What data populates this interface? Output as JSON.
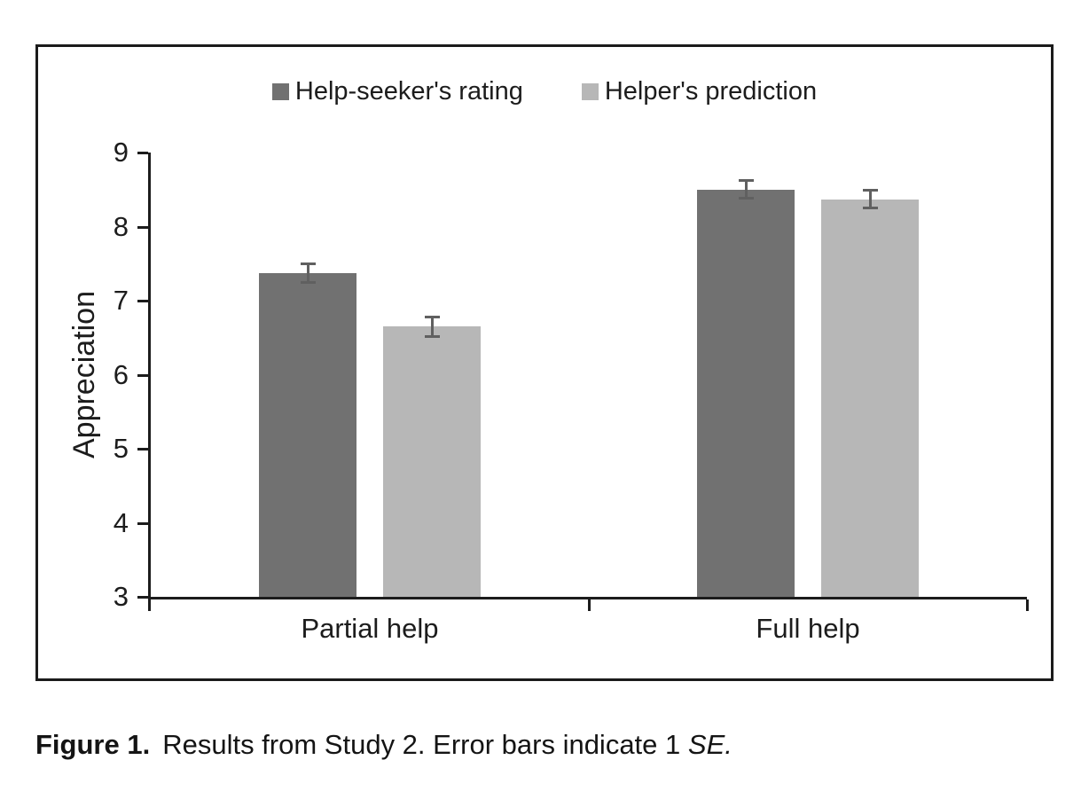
{
  "figure": {
    "caption_label": "Figure 1.",
    "caption_text": "Results from Study 2. Error bars indicate 1 ",
    "caption_italic": "SE."
  },
  "chart_data": {
    "type": "bar",
    "title": "",
    "xlabel": "",
    "ylabel": "Appreciation",
    "ylim": [
      3,
      9
    ],
    "yticks": [
      3,
      4,
      5,
      6,
      7,
      8,
      9
    ],
    "categories": [
      "Partial help",
      "Full help"
    ],
    "series": [
      {
        "name": "Help-seeker's rating",
        "color": "#717171",
        "values": [
          7.37,
          8.5
        ],
        "errors": [
          0.13,
          0.12
        ]
      },
      {
        "name": "Helper's prediction",
        "color": "#b7b7b7",
        "values": [
          6.65,
          8.37
        ],
        "errors": [
          0.13,
          0.12
        ]
      }
    ],
    "legend_position": "top",
    "grid": false,
    "error_note": "Error bars indicate 1 SE"
  }
}
